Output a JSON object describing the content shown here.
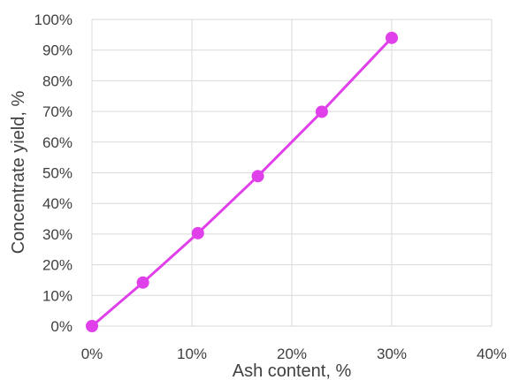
{
  "chart_data": {
    "type": "line",
    "title": "",
    "xlabel": "Ash content, %",
    "ylabel": "Concentrate yield, %",
    "xlim": [
      0,
      40
    ],
    "ylim": [
      0,
      100
    ],
    "x_ticks": [
      0,
      10,
      20,
      30,
      40
    ],
    "y_ticks": [
      0,
      10,
      20,
      30,
      40,
      50,
      60,
      70,
      80,
      90,
      100
    ],
    "x_tick_labels": [
      "0%",
      "10%",
      "20%",
      "30%",
      "40%"
    ],
    "y_tick_labels": [
      "0%",
      "10%",
      "20%",
      "30%",
      "40%",
      "50%",
      "60%",
      "70%",
      "80%",
      "90%",
      "100%"
    ],
    "grid": true,
    "legend": "none",
    "series": [
      {
        "color": "#e040ea",
        "points": [
          {
            "x": 0,
            "y": 0
          },
          {
            "x": 5.1,
            "y": 14.2
          },
          {
            "x": 10.6,
            "y": 30.3
          },
          {
            "x": 16.6,
            "y": 48.9
          },
          {
            "x": 23.0,
            "y": 69.9
          },
          {
            "x": 30.0,
            "y": 94.0
          }
        ]
      }
    ],
    "colors": {
      "grid": "#d9d9d9",
      "text": "#404040"
    }
  }
}
